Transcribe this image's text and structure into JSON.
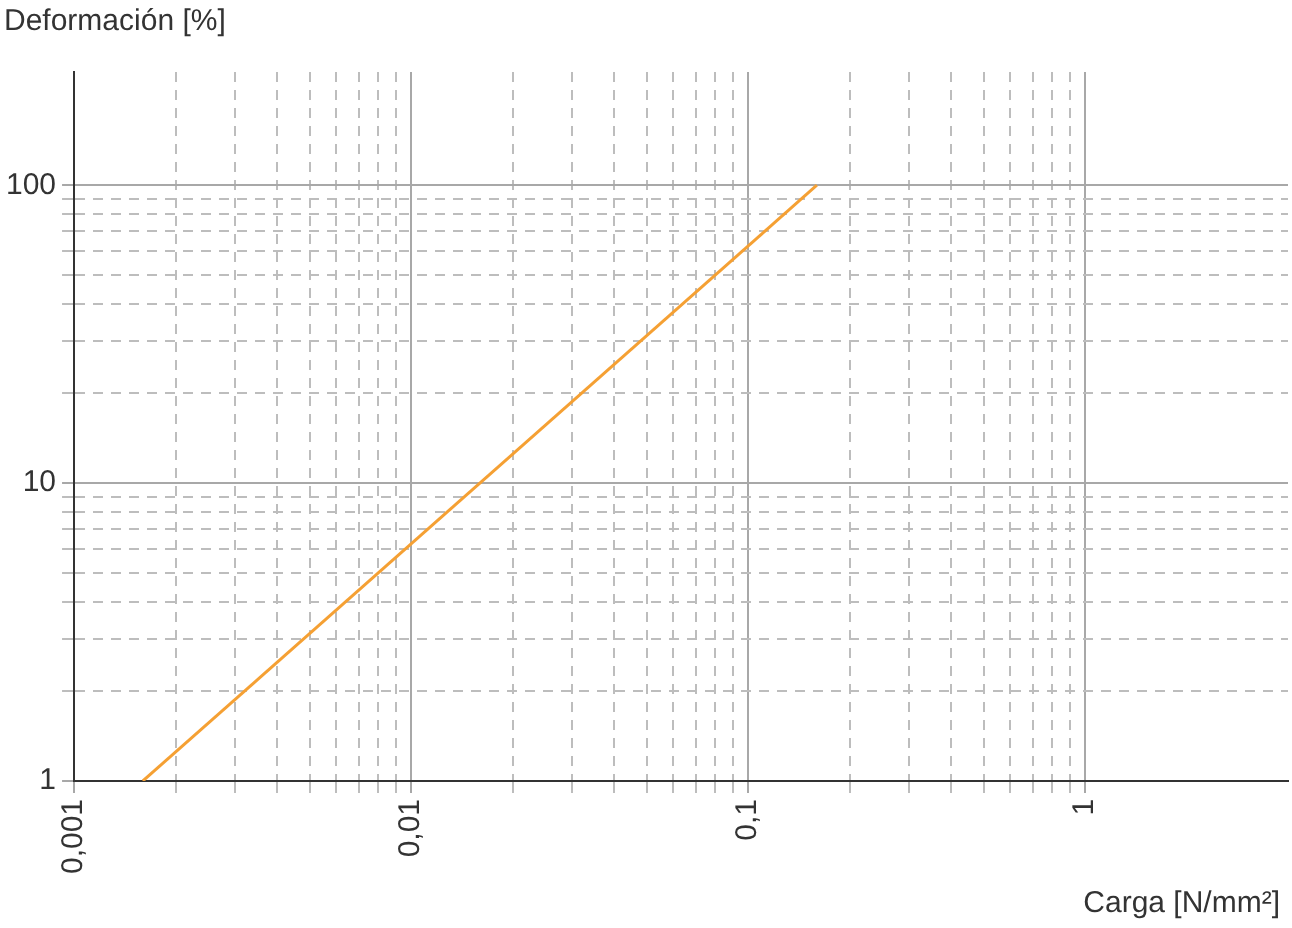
{
  "chart_data": {
    "type": "line",
    "xlabel": "Carga [N/mm²]",
    "ylabel": "Deformación [%]",
    "x": [
      0.0016,
      0.16
    ],
    "series": [
      {
        "color": "#f5a033",
        "values": [
          1,
          100
        ]
      }
    ],
    "log": "xy",
    "grid": true,
    "legend": false,
    "marker": "none",
    "line_style": "solid",
    "xlim": [
      0.001,
      4
    ],
    "ylim": [
      1,
      240
    ],
    "xticks": [
      {
        "value": 0.001,
        "label": "0,001"
      },
      {
        "value": 0.002,
        "label": null
      },
      {
        "value": 0.003,
        "label": null
      },
      {
        "value": 0.004,
        "label": null
      },
      {
        "value": 0.005,
        "label": null
      },
      {
        "value": 0.006,
        "label": null
      },
      {
        "value": 0.007,
        "label": null
      },
      {
        "value": 0.008,
        "label": null
      },
      {
        "value": 0.009,
        "label": null
      },
      {
        "value": 0.01,
        "label": "0,01"
      },
      {
        "value": 0.02,
        "label": null
      },
      {
        "value": 0.03,
        "label": null
      },
      {
        "value": 0.04,
        "label": null
      },
      {
        "value": 0.05,
        "label": null
      },
      {
        "value": 0.06,
        "label": null
      },
      {
        "value": 0.07,
        "label": null
      },
      {
        "value": 0.08,
        "label": null
      },
      {
        "value": 0.09,
        "label": null
      },
      {
        "value": 0.1,
        "label": "0,1"
      },
      {
        "value": 0.2,
        "label": null
      },
      {
        "value": 0.3,
        "label": null
      },
      {
        "value": 0.4,
        "label": null
      },
      {
        "value": 0.5,
        "label": null
      },
      {
        "value": 0.6,
        "label": null
      },
      {
        "value": 0.7,
        "label": null
      },
      {
        "value": 0.8,
        "label": null
      },
      {
        "value": 0.9,
        "label": null
      },
      1
    ],
    "yticks": [
      1,
      {
        "value": 2,
        "label": null
      },
      {
        "value": 3,
        "label": null
      },
      {
        "value": 4,
        "label": null
      },
      {
        "value": 5,
        "label": null
      },
      {
        "value": 6,
        "label": null
      },
      {
        "value": 7,
        "label": null
      },
      {
        "value": 8,
        "label": null
      },
      {
        "value": 9,
        "label": null
      },
      10,
      {
        "value": 20,
        "label": null
      },
      {
        "value": 30,
        "label": null
      },
      {
        "value": 40,
        "label": null
      },
      {
        "value": 50,
        "label": null
      },
      {
        "value": 60,
        "label": null
      },
      {
        "value": 70,
        "label": null
      },
      {
        "value": 80,
        "label": null
      },
      {
        "value": 90,
        "label": null
      },
      100
    ]
  }
}
